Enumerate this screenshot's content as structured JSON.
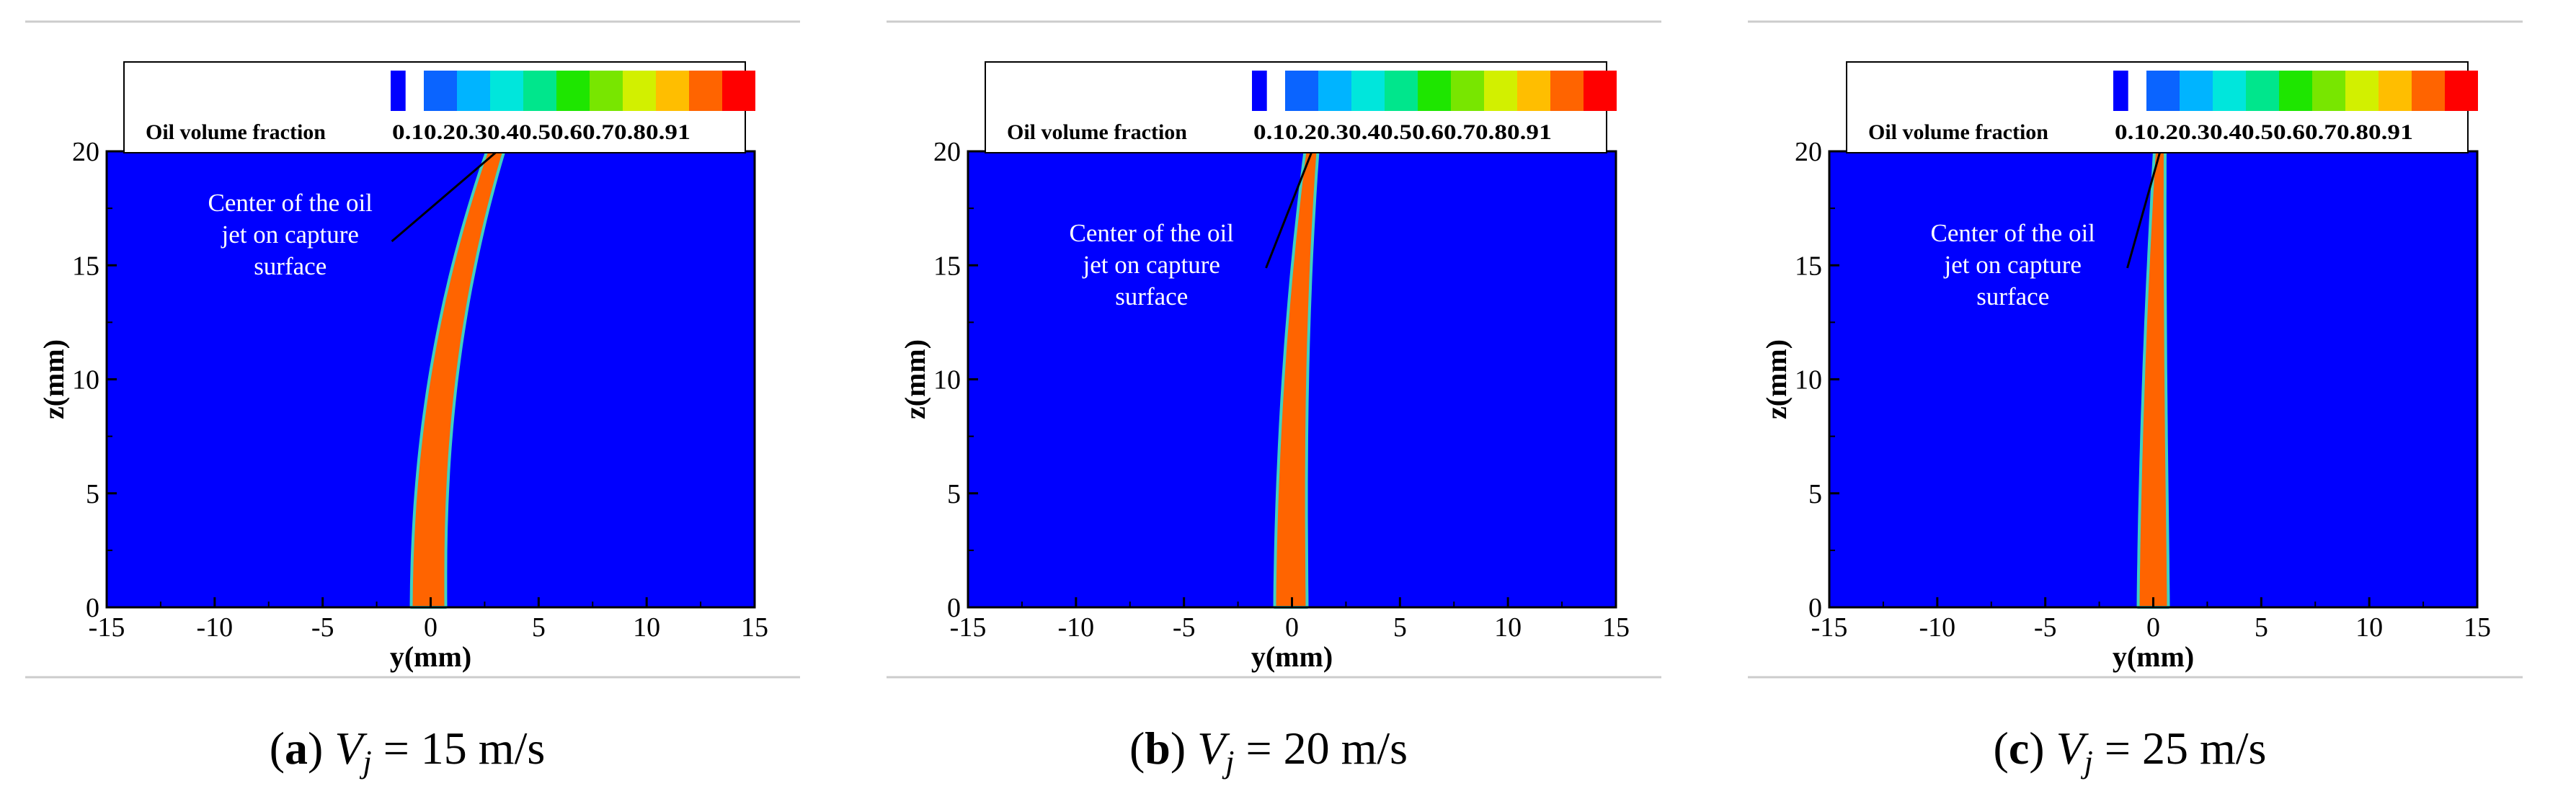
{
  "chart_data": [
    {
      "type": "heatmap",
      "panel_label": "a",
      "velocity": "15",
      "xlabel": "y(mm)",
      "ylabel": "z(mm)",
      "xlim": [
        -15,
        15
      ],
      "ylim": [
        0,
        20
      ],
      "xticks": [
        "-15",
        "-10",
        "-5",
        "0",
        "5",
        "10",
        "15"
      ],
      "yticks": [
        "0",
        "5",
        "10",
        "15",
        "20"
      ],
      "legend_title": "Oil volume fraction",
      "legend_ticks": [
        "0.1",
        "0.2",
        "0.3",
        "0.4",
        "0.5",
        "0.6",
        "0.7",
        "0.8",
        "0.9",
        "1"
      ],
      "annotation": [
        "Center of the oil",
        "jet on capture",
        "surface"
      ],
      "jet": {
        "left_edge_bottom": -0.9,
        "right_edge_bottom": 0.7,
        "center_at_top": 3.0,
        "width_at_top": 0.8
      }
    },
    {
      "type": "heatmap",
      "panel_label": "b",
      "velocity": "20",
      "xlabel": "y(mm)",
      "ylabel": "z(mm)",
      "xlim": [
        -15,
        15
      ],
      "ylim": [
        0,
        20
      ],
      "xticks": [
        "-15",
        "-10",
        "-5",
        "0",
        "5",
        "10",
        "15"
      ],
      "yticks": [
        "0",
        "5",
        "10",
        "15",
        "20"
      ],
      "legend_title": "Oil volume fraction",
      "legend_ticks": [
        "0.1",
        "0.2",
        "0.3",
        "0.4",
        "0.5",
        "0.6",
        "0.7",
        "0.8",
        "0.9",
        "1"
      ],
      "annotation": [
        "Center of the oil",
        "jet on capture",
        "surface"
      ],
      "jet": {
        "left_edge_bottom": -0.8,
        "right_edge_bottom": 0.7,
        "center_at_top": 0.9,
        "width_at_top": 0.6
      }
    },
    {
      "type": "heatmap",
      "panel_label": "c",
      "velocity": "25",
      "xlabel": "y(mm)",
      "ylabel": "z(mm)",
      "xlim": [
        -15,
        15
      ],
      "ylim": [
        0,
        20
      ],
      "xticks": [
        "-15",
        "-10",
        "-5",
        "0",
        "5",
        "10",
        "15"
      ],
      "yticks": [
        "0",
        "5",
        "10",
        "15",
        "20"
      ],
      "legend_title": "Oil volume fraction",
      "legend_ticks": [
        "0.1",
        "0.2",
        "0.3",
        "0.4",
        "0.5",
        "0.6",
        "0.7",
        "0.8",
        "0.9",
        "1"
      ],
      "annotation": [
        "Center of the oil",
        "jet on capture",
        "surface"
      ],
      "jet": {
        "left_edge_bottom": -0.7,
        "right_edge_bottom": 0.7,
        "center_at_top": 0.3,
        "width_at_top": 0.5
      }
    }
  ],
  "captions": [
    {
      "label": "a",
      "symbol": "V",
      "subscript": "j",
      "value": " = 15 m/s"
    },
    {
      "label": "b",
      "symbol": "V",
      "subscript": "j",
      "value": " = 20 m/s"
    },
    {
      "label": "c",
      "symbol": "V",
      "subscript": "j",
      "value": " = 25 m/s"
    }
  ],
  "colors": {
    "background": "#0000ff",
    "jet_fill": "#ff6400",
    "jet_edge": "#40d0c0",
    "colorbar": [
      "#0000ff",
      "#0a64ff",
      "#00b4ff",
      "#00e6dc",
      "#00e68c",
      "#1ee600",
      "#78e600",
      "#d2f000",
      "#ffbe00",
      "#ff6400",
      "#ff0000"
    ]
  }
}
